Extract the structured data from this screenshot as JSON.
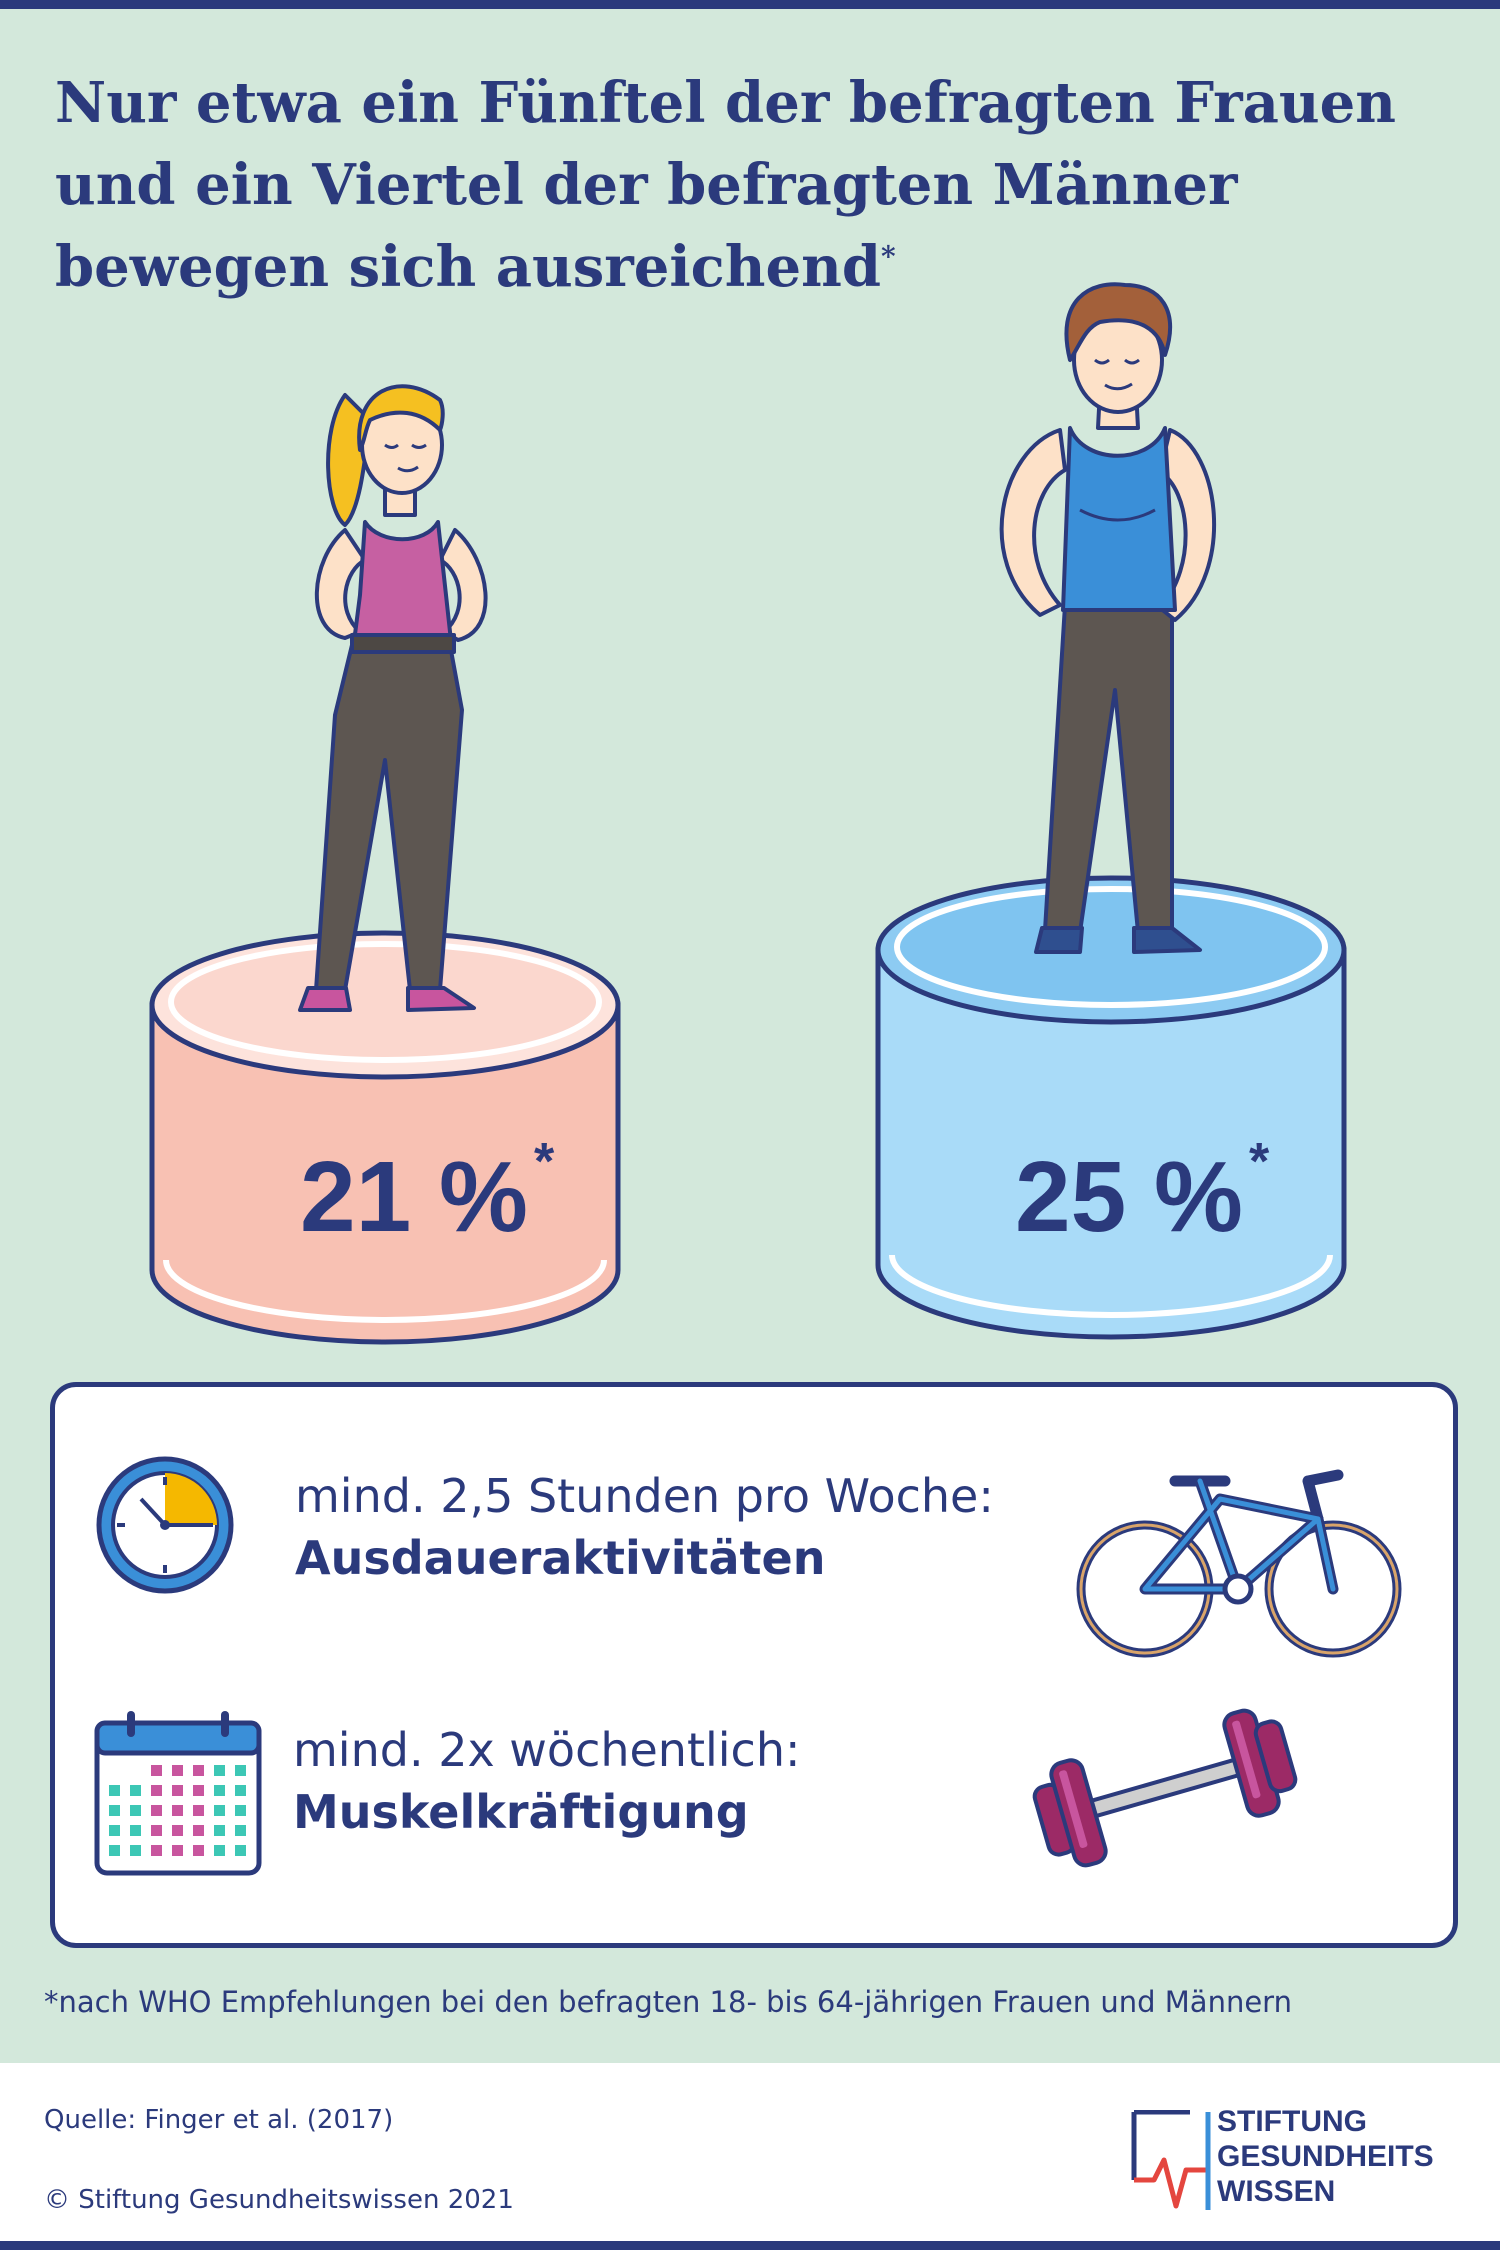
{
  "headline": "Nur etwa ein Fünftel der befragten Frauen und ein Viertel der befragten Männer bewegen sich ausreichend",
  "headline_footnote_mark": "*",
  "women": {
    "percent_label": "21 %",
    "footnote_mark": "*",
    "value": 21,
    "color": "#f8c1b3"
  },
  "men": {
    "percent_label": "25 %",
    "footnote_mark": "*",
    "value": 25,
    "color": "#a9dbf8"
  },
  "recommendations": [
    {
      "line1": "mind. 2,5 Stunden pro Woche:",
      "line2": "Ausdaueraktivitäten",
      "icon": "clock-icon",
      "illustration": "bicycle-icon"
    },
    {
      "line1": "mind. 2x wöchentlich:",
      "line2": "Muskelkräftigung",
      "icon": "calendar-icon",
      "illustration": "dumbbell-icon"
    }
  ],
  "footnote": "*nach WHO Empfehlungen bei den befragten 18- bis 64-jährigen Frauen und Männern",
  "source": "Quelle: Finger et al. (2017)",
  "copyright": "© Stiftung Gesundheitswissen 2021",
  "logo": {
    "line1": "STIFTUNG",
    "line2": "GESUNDHEITS",
    "line3": "WISSEN"
  },
  "colors": {
    "navy": "#2b3a7c",
    "background": "#d3e8db",
    "accent_red": "#e4463f",
    "accent_blue": "#3a8fd8"
  }
}
